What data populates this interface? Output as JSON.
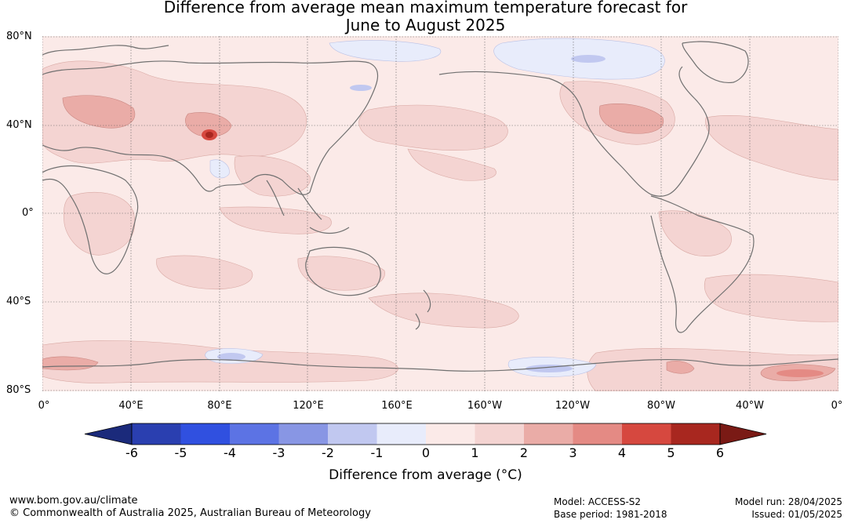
{
  "title": {
    "line1": "Difference from average mean maximum temperature forecast for",
    "line2": "June to August 2025"
  },
  "map": {
    "lat_labels": [
      "80°N",
      "40°N",
      "0°",
      "40°S",
      "80°S"
    ],
    "lon_labels": [
      "0°",
      "40°E",
      "80°E",
      "120°E",
      "160°E",
      "160°W",
      "120°W",
      "80°W",
      "40°W",
      "0°"
    ],
    "colors": {
      "ocean_base": "#fbeae8",
      "warm_1": "#f4d4d2",
      "warm_2": "#eaaca7",
      "warm_3": "#e48a84",
      "warm_4": "#d6483f",
      "warm_5": "#a8271f",
      "cool_1": "#e8ecfb",
      "cool_2": "#c1c8f0",
      "cool_3": "#8896e4",
      "coast": "#707070",
      "grid": "#606060"
    }
  },
  "colorbar": {
    "ticks": [
      "-6",
      "-5",
      "-4",
      "-3",
      "-2",
      "-1",
      "0",
      "1",
      "2",
      "3",
      "4",
      "5",
      "6"
    ],
    "colors": [
      "#1b2a7b",
      "#2a3fb0",
      "#3050e0",
      "#5c73e4",
      "#8896e4",
      "#c1c8f0",
      "#e8ecfb",
      "#fbeae8",
      "#f4d4d2",
      "#eaaca7",
      "#e48a84",
      "#d6483f",
      "#a8271f",
      "#7a1a15"
    ],
    "label": "Difference from average (°C)"
  },
  "footer": {
    "website": "www.bom.gov.au/climate",
    "copyright": "© Commonwealth of Australia 2025, Australian Bureau of Meteorology",
    "model": "Model: ACCESS-S2",
    "base_period": "Base period: 1981-2018",
    "model_run": "Model run: 28/04/2025",
    "issued": "Issued: 01/05/2025"
  }
}
